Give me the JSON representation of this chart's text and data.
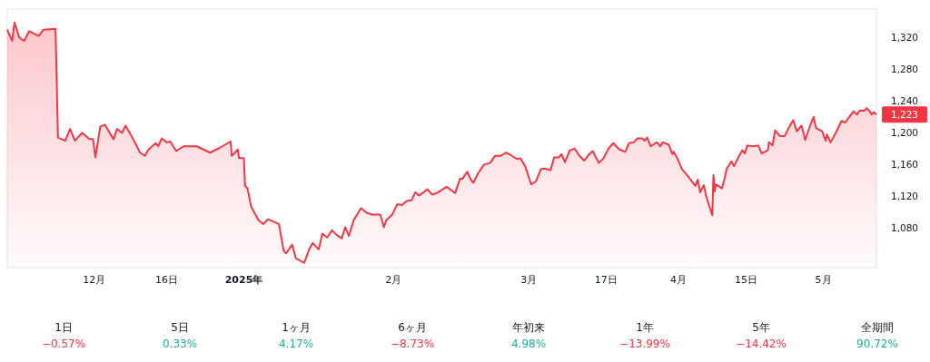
{
  "chart_data": [
    {
      "type": "area",
      "color": "#f23645",
      "grid": false,
      "xlim": [
        "2024-11-13",
        "2025-05-12"
      ],
      "ylim": [
        1030,
        1356
      ],
      "xticks": [
        {
          "value": "2024-12-01",
          "label": "12月"
        },
        {
          "value": "2024-12-16",
          "label": "16日"
        },
        {
          "value": "2025-01-01",
          "label": "**2025年**"
        },
        {
          "value": "2025-02-01",
          "label": "2月"
        },
        {
          "value": "2025-03-01",
          "label": "3月"
        },
        {
          "value": "2025-03-17",
          "label": "17日"
        },
        {
          "value": "2025-04-01",
          "label": "4月"
        },
        {
          "value": "2025-04-15",
          "label": "15日"
        },
        {
          "value": "2025-05-01",
          "label": "5月"
        }
      ],
      "yticks": [
        {
          "value": 1080,
          "label": "1,080"
        },
        {
          "value": 1120,
          "label": "1,120"
        },
        {
          "value": 1160,
          "label": "1,160"
        },
        {
          "value": 1200,
          "label": "1,200"
        },
        {
          "value": 1240,
          "label": "1,240"
        },
        {
          "value": 1280,
          "label": "1,280"
        },
        {
          "value": 1320,
          "label": "1,320"
        }
      ],
      "annotations": [
        {
          "text": "1,223",
          "x": "2025-05-12",
          "y": 1223
        }
      ],
      "x": [
        "2024-11-13",
        "2024-11-14",
        "2024-11-14T12:00",
        "2024-11-15T12:00",
        "2024-11-16T12:00",
        "2024-11-17T12:00",
        "2024-11-19T12:00",
        "2024-11-20T12:00",
        "2024-11-23",
        "2024-11-23T12:00",
        "2024-11-25",
        "2024-11-26",
        "2024-11-27",
        "2024-11-28T12:00",
        "2024-11-30",
        "2024-11-30T18:00",
        "2024-12-01T06:00",
        "2024-12-01T18:00",
        "2024-12-02T06:00",
        "2024-12-03T06:00",
        "2024-12-05",
        "2024-12-05T18:00",
        "2024-12-06T18:00",
        "2024-12-07T12:00",
        "2024-12-09T06:00",
        "2024-12-10T12:00",
        "2024-12-11T12:00",
        "2024-12-12T06:00",
        "2024-12-13T18:00",
        "2024-12-14T06:00",
        "2024-12-15",
        "2024-12-16",
        "2024-12-16T18:00",
        "2024-12-18",
        "2024-12-19T12:00",
        "2024-12-22T06:00",
        "2024-12-25",
        "2024-12-27",
        "2024-12-29T06:00",
        "2024-12-29T12:00",
        "2024-12-30T18:00",
        "2024-12-31",
        "2025-01-01",
        "2025-01-01T06:00",
        "2025-01-01T18:00",
        "2025-01-02T12:00",
        "2025-01-04",
        "2025-01-05",
        "2025-01-06",
        "2025-01-08T06:00",
        "2025-01-09T06:00",
        "2025-01-09T18:00",
        "2025-01-11",
        "2025-01-11T18:00",
        "2025-01-13T12:00",
        "2025-01-14T12:00",
        "2025-01-15T06:00",
        "2025-01-16T12:00",
        "2025-01-17T06:00",
        "2025-01-18T06:00",
        "2025-01-19T06:00",
        "2025-01-20T06:00",
        "2025-01-21T06:00",
        "2025-01-22",
        "2025-01-22T18:00",
        "2025-01-23T18:00",
        "2025-01-24T06:00",
        "2025-01-25T06:00",
        "2025-01-26T12:00",
        "2025-01-27T12:00",
        "2025-01-29T06:00",
        "2025-01-30",
        "2025-01-30T12:00",
        "2025-01-31T18:00",
        "2025-02-01T18:00",
        "2025-02-02T18:00",
        "2025-02-03T18:00",
        "2025-02-04T18:00",
        "2025-02-05T12:00",
        "2025-02-06T06:00",
        "2025-02-07T06:00",
        "2025-02-08",
        "2025-02-09",
        "2025-02-10T06:00",
        "2025-02-12",
        "2025-02-13T18:00",
        "2025-02-14T18:00",
        "2025-02-15T06:00",
        "2025-02-16T06:00",
        "2025-02-17",
        "2025-02-17T12:00",
        "2025-02-18T12:00",
        "2025-02-19T18:00",
        "2025-02-21",
        "2025-02-22",
        "2025-02-23T06:00",
        "2025-02-24T06:00",
        "2025-02-25",
        "2025-02-26T12:00",
        "2025-02-27T06:00",
        "2025-02-28T06:00",
        "2025-03-01T12:00",
        "2025-03-02T12:00",
        "2025-03-03T12:00",
        "2025-03-04T06:00",
        "2025-03-05T12:00",
        "2025-03-06T06:00",
        "2025-03-07T06:00",
        "2025-03-07T18:00",
        "2025-03-08T12:00",
        "2025-03-09T12:00",
        "2025-03-10T12:00",
        "2025-03-11T12:00",
        "2025-03-12T12:00",
        "2025-03-13T12:00",
        "2025-03-14T06:00",
        "2025-03-15T12:00",
        "2025-03-16T12:00",
        "2025-03-17T12:00",
        "2025-03-18T12:00",
        "2025-03-19T18:00",
        "2025-03-21",
        "2025-03-21T18:00",
        "2025-03-22T18:00",
        "2025-03-23T12:00",
        "2025-03-24T12:00",
        "2025-03-25",
        "2025-03-25T12:00",
        "2025-03-26T06:00",
        "2025-03-27T12:00",
        "2025-03-28T06:00",
        "2025-03-28T18:00",
        "2025-03-30",
        "2025-03-30T18:00",
        "2025-03-31",
        "2025-03-31T18:00",
        "2025-04-01T18:00",
        "2025-04-03",
        "2025-04-04T12:00",
        "2025-04-05",
        "2025-04-05T12:00",
        "2025-04-06T06:00",
        "2025-04-06T18:00",
        "2025-04-08",
        "2025-04-08T06:00",
        "2025-04-08T12:00",
        "2025-04-08T18:00",
        "2025-04-10",
        "2025-04-10T12:00",
        "2025-04-11",
        "2025-04-12",
        "2025-04-12T12:00",
        "2025-04-13T12:00",
        "2025-04-14T06:00",
        "2025-04-14T18:00",
        "2025-04-15T06:00",
        "2025-04-16T12:00",
        "2025-04-17T12:00",
        "2025-04-18T06:00",
        "2025-04-19T12:00",
        "2025-04-19T18:00",
        "2025-04-20T12:00",
        "2025-04-21",
        "2025-04-22",
        "2025-04-23",
        "2025-04-24",
        "2025-04-24T18:00",
        "2025-04-25T12:00",
        "2025-04-26T12:00",
        "2025-04-27T06:00",
        "2025-04-28T06:00",
        "2025-04-29",
        "2025-04-29T12:00",
        "2025-04-30T18:00",
        "2025-05-01T12:00",
        "2025-05-01T18:00",
        "2025-05-02T12:00",
        "2025-05-03T12:00",
        "2025-05-04",
        "2025-05-04T18:00",
        "2025-05-05T12:00",
        "2025-05-06T12:00",
        "2025-05-07T06:00",
        "2025-05-08",
        "2025-05-08T12:00",
        "2025-05-09T12:00",
        "2025-05-10",
        "2025-05-10T12:00",
        "2025-05-11",
        "2025-05-11T12:00",
        "2025-05-12"
      ],
      "values": [
        1330,
        1316,
        1339,
        1320,
        1316,
        1328,
        1322,
        1330,
        1331,
        1194,
        1190,
        1205,
        1190,
        1200,
        1192,
        1192,
        1169,
        1188,
        1208,
        1210,
        1192,
        1205,
        1200,
        1209,
        1190,
        1175,
        1171,
        1179,
        1187,
        1183,
        1193,
        1188,
        1189,
        1177,
        1183,
        1183,
        1175,
        1181,
        1189,
        1171,
        1179,
        1168,
        1168,
        1133,
        1130,
        1107,
        1090,
        1085,
        1091,
        1085,
        1051,
        1048,
        1059,
        1042,
        1036,
        1053,
        1061,
        1053,
        1073,
        1068,
        1077,
        1071,
        1067,
        1081,
        1070,
        1090,
        1095,
        1105,
        1099,
        1097,
        1097,
        1081,
        1090,
        1097,
        1110,
        1109,
        1114,
        1115,
        1125,
        1121,
        1125,
        1129,
        1122,
        1125,
        1132,
        1124,
        1142,
        1142,
        1151,
        1141,
        1137,
        1149,
        1160,
        1162,
        1171,
        1171,
        1175,
        1173,
        1167,
        1168,
        1158,
        1135,
        1139,
        1154,
        1155,
        1153,
        1169,
        1169,
        1173,
        1163,
        1178,
        1180,
        1171,
        1165,
        1173,
        1177,
        1162,
        1168,
        1180,
        1187,
        1179,
        1176,
        1187,
        1188,
        1193,
        1193,
        1190,
        1194,
        1183,
        1188,
        1183,
        1188,
        1185,
        1173,
        1176,
        1168,
        1154,
        1145,
        1133,
        1141,
        1125,
        1134,
        1120,
        1096,
        1147,
        1126,
        1135,
        1130,
        1141,
        1155,
        1164,
        1158,
        1170,
        1178,
        1174,
        1184,
        1183,
        1184,
        1174,
        1178,
        1188,
        1184,
        1203,
        1196,
        1196,
        1208,
        1216,
        1202,
        1209,
        1191,
        1209,
        1220,
        1206,
        1202,
        1190,
        1198,
        1188,
        1199,
        1205,
        1215,
        1213,
        1221,
        1227,
        1223,
        1228,
        1228,
        1231,
        1228,
        1223,
        1226,
        1223
      ]
    },
    {
      "type": "other",
      "categories": [
        "1日",
        "5日",
        "1ヶ月",
        "6ヶ月",
        "年初来",
        "1年",
        "5年",
        "全期間"
      ],
      "values": [
        -0.57,
        0.33,
        4.17,
        -8.73,
        4.98,
        -13.99,
        -14.42,
        90.72
      ],
      "value_labels": [
        "−0.57%",
        "0.33%",
        "4.17%",
        "−8.73%",
        "4.98%",
        "−13.99%",
        "−14.42%",
        "90.72%"
      ]
    }
  ]
}
